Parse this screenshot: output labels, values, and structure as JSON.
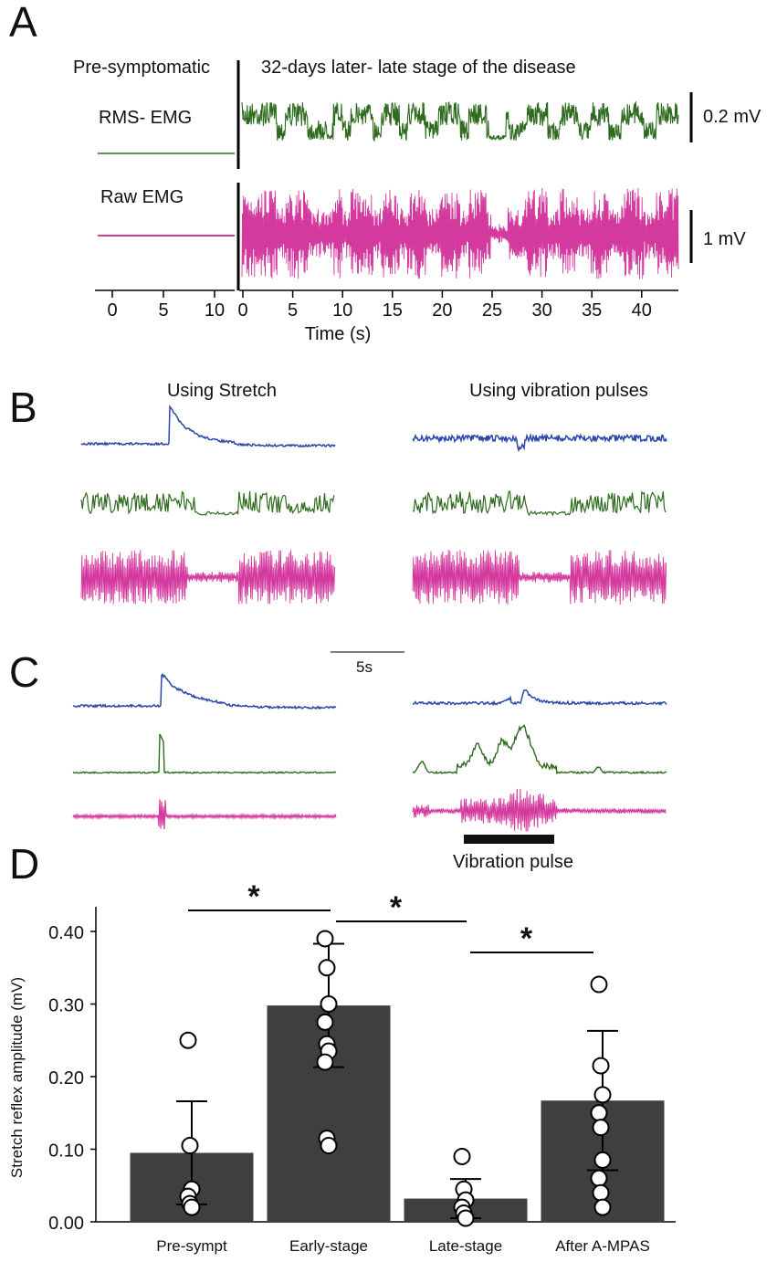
{
  "figure": {
    "panel_letters": [
      "A",
      "B",
      "C",
      "D"
    ],
    "colors": {
      "blue": "#2b47a8",
      "green": "#2e6b1f",
      "magenta": "#d43a9e",
      "bar": "#3f3f3f"
    }
  },
  "panelA": {
    "pre_label": "Pre-symptomatic",
    "late_label": "32-days later- late stage of the disease",
    "rms_label": "RMS- EMG",
    "raw_label": "Raw EMG",
    "scale_rms": "0.2 mV",
    "scale_raw": "1 mV",
    "xlabel": "Time (s)",
    "ticks_pre": [
      "0",
      "5",
      "10"
    ],
    "ticks_late": [
      "0",
      "5",
      "10",
      "15",
      "20",
      "25",
      "30",
      "35",
      "40"
    ]
  },
  "panelB": {
    "title_left": "Using Stretch",
    "title_right": "Using vibration pulses"
  },
  "panelC": {
    "time_scale": "5s",
    "vibration_label": "Vibration pulse"
  },
  "chart_data": {
    "type": "bar",
    "title": "",
    "xlabel": "",
    "ylabel": "Stretch reflex amplitude (mV)",
    "ylim": [
      0,
      0.42
    ],
    "ytick_labels": [
      "0.00",
      "0.10",
      "0.20",
      "0.30",
      "0.40"
    ],
    "yticks": [
      0,
      0.1,
      0.2,
      0.3,
      0.4
    ],
    "categories": [
      "Pre-sympt",
      "Early-stage",
      "Late-stage",
      "After A-MPAS"
    ],
    "values": [
      0.095,
      0.298,
      0.032,
      0.167
    ],
    "sd": [
      0.071,
      0.085,
      0.027,
      0.096
    ],
    "points": [
      [
        0.25,
        0.105,
        0.045,
        0.035,
        0.025,
        0.02
      ],
      [
        0.39,
        0.35,
        0.3,
        0.275,
        0.245,
        0.235,
        0.22,
        0.115,
        0.105
      ],
      [
        0.09,
        0.045,
        0.03,
        0.02,
        0.012,
        0.005
      ],
      [
        0.327,
        0.215,
        0.175,
        0.15,
        0.13,
        0.085,
        0.06,
        0.04,
        0.02
      ]
    ],
    "significance": [
      {
        "groups": [
          "Pre-sympt",
          "Early-stage"
        ],
        "label": "*"
      },
      {
        "groups": [
          "Early-stage",
          "Late-stage"
        ],
        "label": "*"
      },
      {
        "groups": [
          "Late-stage",
          "After A-MPAS"
        ],
        "label": "*"
      }
    ]
  }
}
